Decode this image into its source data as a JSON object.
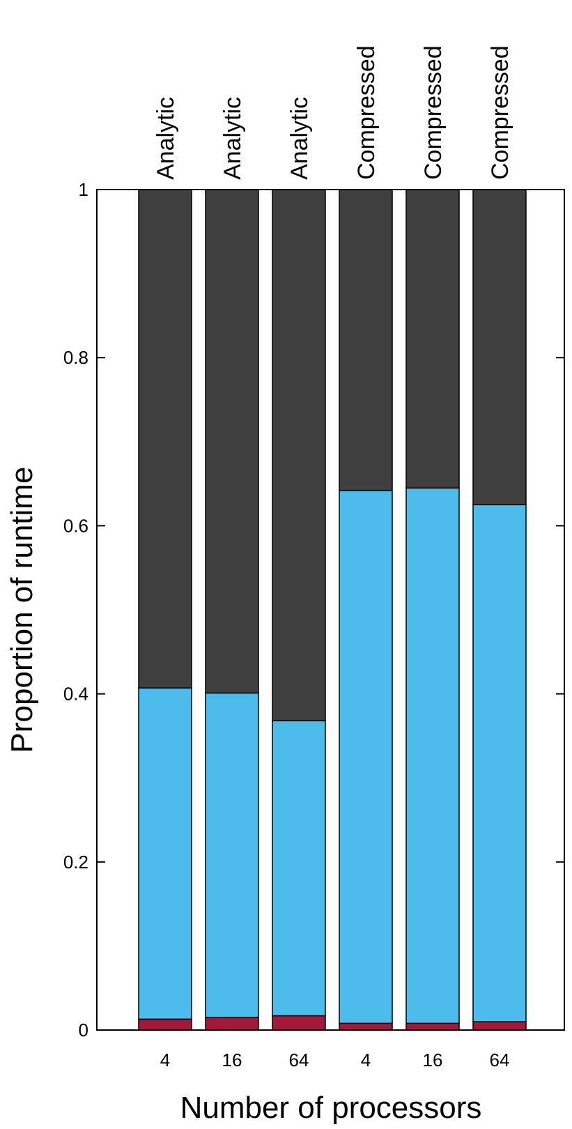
{
  "chart_data": {
    "type": "bar",
    "stacked": true,
    "categories": [
      "4",
      "16",
      "64",
      "4",
      "16",
      "64"
    ],
    "group_labels": [
      "Analytic",
      "Analytic",
      "Analytic",
      "Compressed",
      "Compressed",
      "Compressed"
    ],
    "series": [
      {
        "color": "#a3193a",
        "values": [
          0.013,
          0.015,
          0.017,
          0.008,
          0.008,
          0.01
        ]
      },
      {
        "color": "#4dbcec",
        "values": [
          0.394,
          0.386,
          0.351,
          0.634,
          0.637,
          0.615
        ]
      },
      {
        "color": "#3f3f3f",
        "values": [
          0.593,
          0.599,
          0.632,
          0.358,
          0.355,
          0.375
        ]
      }
    ],
    "xlabel": "Number of processors",
    "ylabel": "Proportion of runtime",
    "ylim": [
      0,
      1
    ],
    "yticks": [
      "0",
      "0.2",
      "0.4",
      "0.6",
      "0.8",
      "1"
    ],
    "legend": "none",
    "grid": false
  }
}
